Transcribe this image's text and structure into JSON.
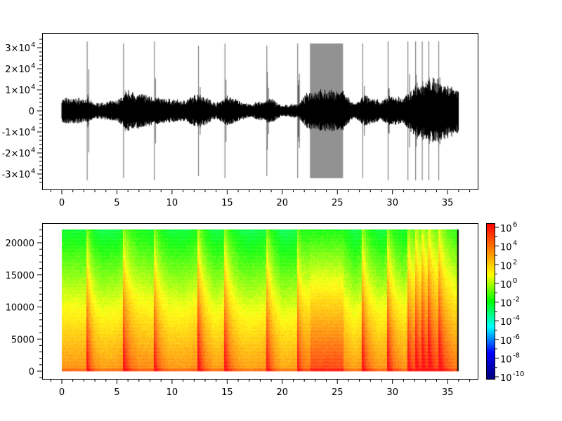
{
  "chart_data": [
    {
      "type": "line",
      "title": "",
      "xlabel": "",
      "ylabel": "",
      "xlim": [
        -1.8,
        37.7
      ],
      "ylim": [
        -35000,
        36000
      ],
      "x_ticks": [
        "0",
        "5",
        "10",
        "15",
        "20",
        "25",
        "30",
        "35"
      ],
      "y_ticks": [
        {
          "v": 30000,
          "label": "3×10",
          "exp": "4"
        },
        {
          "v": 20000,
          "label": "2×10",
          "exp": "4"
        },
        {
          "v": 10000,
          "label": "1×10",
          "exp": "4"
        },
        {
          "v": 0,
          "label": "0",
          "exp": ""
        },
        {
          "v": -10000,
          "label": "-1×10",
          "exp": "4"
        },
        {
          "v": -20000,
          "label": "-2×10",
          "exp": "4"
        },
        {
          "v": -30000,
          "label": "-3×10",
          "exp": "4"
        }
      ],
      "duration": 36,
      "envelope": [
        [
          0,
          5000
        ],
        [
          2,
          5000
        ],
        [
          3,
          3000
        ],
        [
          5,
          4000
        ],
        [
          6,
          8000
        ],
        [
          8,
          6000
        ],
        [
          9,
          5000
        ],
        [
          11,
          4000
        ],
        [
          12.5,
          7000
        ],
        [
          14,
          3000
        ],
        [
          15,
          6000
        ],
        [
          17,
          2500
        ],
        [
          19,
          5000
        ],
        [
          20,
          2000
        ],
        [
          21.5,
          3000
        ],
        [
          22.5,
          8000
        ],
        [
          25.5,
          8000
        ],
        [
          26.5,
          2500
        ],
        [
          27.5,
          6000
        ],
        [
          29,
          4000
        ],
        [
          30,
          6000
        ],
        [
          31,
          5000
        ],
        [
          32,
          10000
        ],
        [
          34,
          13000
        ],
        [
          36,
          9000
        ]
      ],
      "spikes": [
        [
          2.3,
          33000
        ],
        [
          5.6,
          32000
        ],
        [
          8.4,
          33000
        ],
        [
          12.4,
          31000
        ],
        [
          14.8,
          32000
        ],
        [
          18.6,
          31000
        ],
        [
          21.4,
          32000
        ],
        [
          27.3,
          32000
        ],
        [
          29.6,
          33000
        ],
        [
          31.4,
          33000
        ],
        [
          32.1,
          33000
        ],
        [
          32.7,
          33000
        ],
        [
          33.3,
          33000
        ],
        [
          34.2,
          33000
        ]
      ],
      "noisy_region": {
        "start": 22.5,
        "end": 25.5,
        "amplitude": 32000
      }
    },
    {
      "type": "heatmap",
      "title": "",
      "xlabel": "",
      "ylabel": "",
      "xlim": [
        -1.8,
        37.7
      ],
      "ylim": [
        -1200,
        23000
      ],
      "freq_max": 22050,
      "duration": 36,
      "x_ticks": [
        "0",
        "5",
        "10",
        "15",
        "20",
        "25",
        "30",
        "35"
      ],
      "y_ticks": [
        "0",
        "5000",
        "10000",
        "15000",
        "20000"
      ],
      "colorbar": {
        "scale": "log",
        "min_exp": -10,
        "max_exp": 6,
        "ticks": [
          {
            "base": "10",
            "exp": "6"
          },
          {
            "base": "10",
            "exp": "4"
          },
          {
            "base": "10",
            "exp": "2"
          },
          {
            "base": "10",
            "exp": "0"
          },
          {
            "base": "10",
            "exp": "-2"
          },
          {
            "base": "10",
            "exp": "-4"
          },
          {
            "base": "10",
            "exp": "-6"
          },
          {
            "base": "10",
            "exp": "-8"
          },
          {
            "base": "10",
            "exp": "-10"
          }
        ],
        "colors": [
          "#00007f",
          "#0000ff",
          "#00ffff",
          "#00ff00",
          "#ffff00",
          "#ff7f00",
          "#ff0000"
        ]
      }
    }
  ]
}
